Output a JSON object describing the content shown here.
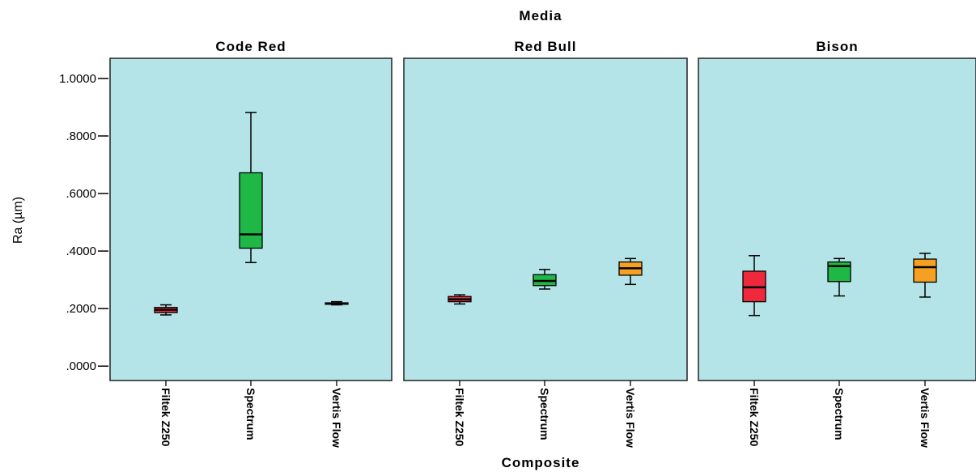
{
  "chart_data": {
    "type": "boxplot",
    "title": "Media",
    "xlabel": "Composite",
    "ylabel": "Ra (µm)",
    "ylim": [
      -0.05,
      1.07
    ],
    "yticks": [
      0.0,
      0.2,
      0.4,
      0.6,
      0.8,
      1.0
    ],
    "ytick_labels": [
      ".0000",
      ".2000",
      ".4000",
      ".6000",
      ".8000",
      "1.0000"
    ],
    "categories": [
      "Filtek Z250",
      "Spectrum",
      "Vertis Flow"
    ],
    "category_colors": [
      "#f0283c",
      "#1fb846",
      "#f5a021"
    ],
    "panel_background": "#b4e4e8",
    "grid": false,
    "panels": [
      {
        "name": "Code Red",
        "boxes": [
          {
            "category": "Filtek Z250",
            "min": 0.178,
            "q1": 0.186,
            "median": 0.196,
            "q3": 0.204,
            "max": 0.213
          },
          {
            "category": "Spectrum",
            "min": 0.36,
            "q1": 0.41,
            "median": 0.458,
            "q3": 0.672,
            "max": 0.882
          },
          {
            "category": "Vertis Flow",
            "min": 0.213,
            "q1": 0.215,
            "median": 0.217,
            "q3": 0.22,
            "max": 0.224
          }
        ]
      },
      {
        "name": "Red Bull",
        "boxes": [
          {
            "category": "Filtek Z250",
            "min": 0.216,
            "q1": 0.224,
            "median": 0.232,
            "q3": 0.242,
            "max": 0.248
          },
          {
            "category": "Spectrum",
            "min": 0.268,
            "q1": 0.28,
            "median": 0.296,
            "q3": 0.318,
            "max": 0.336
          },
          {
            "category": "Vertis Flow",
            "min": 0.284,
            "q1": 0.316,
            "median": 0.34,
            "q3": 0.362,
            "max": 0.374
          }
        ]
      },
      {
        "name": "Bison",
        "boxes": [
          {
            "category": "Filtek Z250",
            "min": 0.176,
            "q1": 0.224,
            "median": 0.274,
            "q3": 0.33,
            "max": 0.384
          },
          {
            "category": "Spectrum",
            "min": 0.244,
            "q1": 0.294,
            "median": 0.348,
            "q3": 0.362,
            "max": 0.374
          },
          {
            "category": "Vertis Flow",
            "min": 0.24,
            "q1": 0.292,
            "median": 0.344,
            "q3": 0.372,
            "max": 0.392
          }
        ]
      }
    ]
  }
}
